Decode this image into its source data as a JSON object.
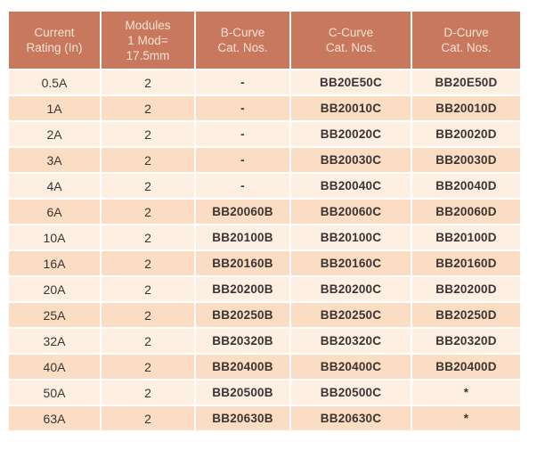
{
  "colors": {
    "header_bg": "#C8795D",
    "header_text": "#F6E2D7",
    "row_light_bg": "#FDF0E2",
    "row_dark_bg": "#FBDDC3",
    "body_text": "#3B3432",
    "page_bg": "#FFFFFF"
  },
  "table": {
    "headers": [
      "Current\nRating (In)",
      "Modules\n1 Mod=\n17.5mm",
      "B-Curve\nCat. Nos.",
      "C-Curve\nCat. Nos.",
      "D-Curve\nCat. Nos."
    ],
    "rows": [
      [
        "0.5A",
        "2",
        "-",
        "BB20E50C",
        "BB20E50D"
      ],
      [
        "1A",
        "2",
        "-",
        "BB20010C",
        "BB20010D"
      ],
      [
        "2A",
        "2",
        "-",
        "BB20020C",
        "BB20020D"
      ],
      [
        "3A",
        "2",
        "-",
        "BB20030C",
        "BB20030D"
      ],
      [
        "4A",
        "2",
        "-",
        "BB20040C",
        "BB20040D"
      ],
      [
        "6A",
        "2",
        "BB20060B",
        "BB20060C",
        "BB20060D"
      ],
      [
        "10A",
        "2",
        "BB20100B",
        "BB20100C",
        "BB20100D"
      ],
      [
        "16A",
        "2",
        "BB20160B",
        "BB20160C",
        "BB20160D"
      ],
      [
        "20A",
        "2",
        "BB20200B",
        "BB20200C",
        "BB20200D"
      ],
      [
        "25A",
        "2",
        "BB20250B",
        "BB20250C",
        "BB20250D"
      ],
      [
        "32A",
        "2",
        "BB20320B",
        "BB20320C",
        "BB20320D"
      ],
      [
        "40A",
        "2",
        "BB20400B",
        "BB20400C",
        "BB20400D"
      ],
      [
        "50A",
        "2",
        "BB20500B",
        "BB20500C",
        "*"
      ],
      [
        "63A",
        "2",
        "BB20630B",
        "BB20630C",
        "*"
      ]
    ]
  }
}
